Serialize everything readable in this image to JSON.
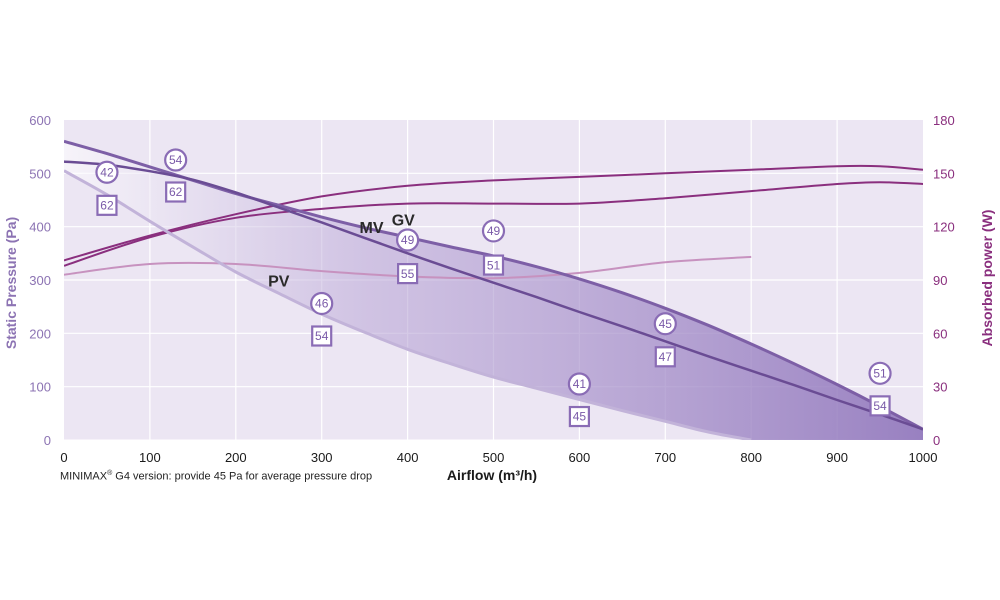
{
  "chart_data": {
    "type": "line",
    "x_axis": {
      "label": "Airflow (m³/h)",
      "min": 0,
      "max": 1000,
      "ticks": [
        0,
        100,
        200,
        300,
        400,
        500,
        600,
        700,
        800,
        900,
        1000
      ]
    },
    "y_axis_left": {
      "label": "Static Pressure (Pa)",
      "min": 0,
      "max": 600,
      "ticks": [
        0,
        100,
        200,
        300,
        400,
        500,
        600
      ]
    },
    "y_axis_right": {
      "label": "Absorbed power (W)",
      "min": 0,
      "max": 180,
      "ticks": [
        0,
        30,
        60,
        90,
        120,
        150,
        180
      ]
    },
    "grid": true,
    "pressure_curves": [
      {
        "name": "GV",
        "x": [
          0,
          50,
          100,
          150,
          200,
          250,
          300,
          350,
          400,
          450,
          500,
          550,
          600,
          650,
          700,
          750,
          800,
          850,
          900,
          950,
          1000
        ],
        "y": [
          560,
          537,
          512,
          487,
          462,
          440,
          418,
          398,
          380,
          362,
          345,
          325,
          302,
          276,
          247,
          215,
          180,
          143,
          104,
          63,
          20
        ]
      },
      {
        "name": "MV",
        "x": [
          0,
          50,
          100,
          150,
          200,
          250,
          300,
          350,
          400,
          450,
          500,
          550,
          600,
          650,
          700,
          750,
          800,
          850,
          900,
          950,
          1000
        ],
        "y": [
          522,
          516,
          504,
          488,
          464,
          436,
          408,
          379,
          350,
          322,
          295,
          268,
          240,
          213,
          185,
          157,
          130,
          103,
          75,
          48,
          20
        ]
      },
      {
        "name": "PV",
        "x": [
          0,
          50,
          100,
          150,
          200,
          250,
          300,
          350,
          400,
          450,
          500,
          550,
          600,
          650,
          700,
          750,
          800
        ],
        "y": [
          505,
          460,
          410,
          362,
          315,
          275,
          236,
          202,
          170,
          143,
          118,
          97,
          76,
          55,
          35,
          15,
          0
        ]
      }
    ],
    "power_curves": [
      {
        "x": [
          0,
          100,
          200,
          300,
          400,
          500,
          600,
          700,
          800,
          900,
          950,
          1000
        ],
        "y": [
          101,
          115,
          127,
          137,
          143,
          146,
          148,
          150,
          152,
          154,
          154,
          152
        ]
      },
      {
        "x": [
          0,
          100,
          200,
          300,
          400,
          500,
          600,
          700,
          800,
          900,
          950,
          1000
        ],
        "y": [
          98,
          114,
          125,
          130,
          133,
          133,
          133,
          136,
          140,
          144,
          145,
          144
        ]
      },
      {
        "x": [
          0,
          100,
          200,
          300,
          400,
          500,
          600,
          700,
          800
        ],
        "y": [
          93,
          99,
          99,
          95,
          92,
          91,
          94,
          100,
          103
        ]
      }
    ],
    "markers": [
      {
        "shape": "circle",
        "label": "42",
        "x": 50,
        "y": 502
      },
      {
        "shape": "square",
        "label": "62",
        "x": 50,
        "y": 440
      },
      {
        "shape": "circle",
        "label": "54",
        "x": 130,
        "y": 525
      },
      {
        "shape": "square",
        "label": "62",
        "x": 130,
        "y": 465
      },
      {
        "shape": "circle",
        "label": "49",
        "x": 400,
        "y": 375
      },
      {
        "shape": "square",
        "label": "55",
        "x": 400,
        "y": 312
      },
      {
        "shape": "circle",
        "label": "49",
        "x": 500,
        "y": 392
      },
      {
        "shape": "square",
        "label": "51",
        "x": 500,
        "y": 328
      },
      {
        "shape": "circle",
        "label": "46",
        "x": 300,
        "y": 256
      },
      {
        "shape": "square",
        "label": "54",
        "x": 300,
        "y": 195
      },
      {
        "shape": "circle",
        "label": "41",
        "x": 600,
        "y": 105
      },
      {
        "shape": "square",
        "label": "45",
        "x": 600,
        "y": 44
      },
      {
        "shape": "circle",
        "label": "45",
        "x": 700,
        "y": 218
      },
      {
        "shape": "square",
        "label": "47",
        "x": 700,
        "y": 156
      },
      {
        "shape": "circle",
        "label": "51",
        "x": 950,
        "y": 125
      },
      {
        "shape": "square",
        "label": "54",
        "x": 950,
        "y": 64
      }
    ],
    "curve_labels": [
      {
        "text": "GV",
        "x": 395,
        "y": 402
      },
      {
        "text": "MV",
        "x": 358,
        "y": 388
      },
      {
        "text": "PV",
        "x": 250,
        "y": 288
      }
    ],
    "colors": {
      "gv_line": "#7d5fa6",
      "mv_line": "#6a4c94",
      "pv_line": "#c2b3d9",
      "power_dark": "#8a2f7e",
      "power_light": "#c792bf",
      "plot_bg": "#ece6f3",
      "band": "#9b84c2",
      "left_axis": "#8c73b3",
      "right_axis": "#8a2f7e"
    }
  },
  "footnote": {
    "prefix": "MINIMAX",
    "sup": "®",
    "suffix": " G4 version: provide 45 Pa for average pressure drop"
  }
}
